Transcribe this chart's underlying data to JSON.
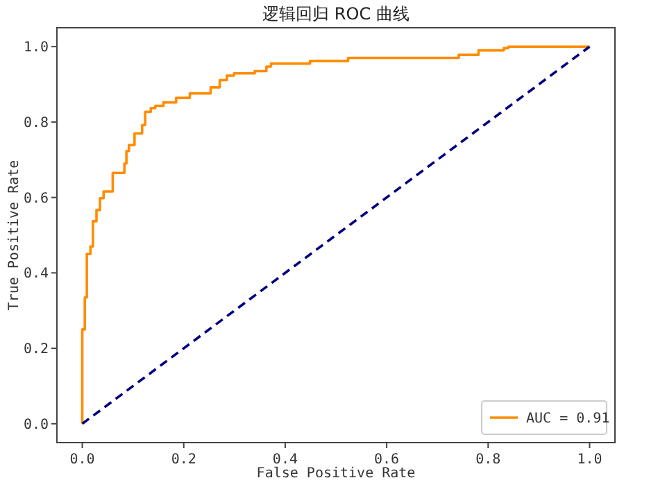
{
  "chart_data": {
    "type": "line",
    "title": "逻辑回归 ROC 曲线",
    "xlabel": "False Positive Rate",
    "ylabel": "True Positive Rate",
    "xlim": [
      -0.05,
      1.05
    ],
    "ylim": [
      -0.05,
      1.05
    ],
    "xticks": [
      {
        "value": 0,
        "label": "0.0"
      },
      0.2,
      0.4,
      0.6,
      0.8,
      {
        "value": 1,
        "label": "1.0"
      }
    ],
    "yticks": [
      {
        "value": 0,
        "label": "0.0"
      },
      0.2,
      0.4,
      0.6,
      0.8,
      {
        "value": 1,
        "label": "1.0"
      }
    ],
    "legend": "bottom right",
    "series": [
      {
        "name": "AUC = 0.91",
        "color": "#ff8c00",
        "line_style": "solid",
        "x": [
          0,
          0,
          0.005,
          0.005,
          0.009,
          0.009,
          0.016,
          0.016,
          0.021,
          0.021,
          0.028,
          0.028,
          0.035,
          0.035,
          0.042,
          0.042,
          0.06,
          0.06,
          0.083,
          0.083,
          0.087,
          0.087,
          0.092,
          0.092,
          0.103,
          0.103,
          0.118,
          0.118,
          0.124,
          0.124,
          0.135,
          0.135,
          0.144,
          0.144,
          0.16,
          0.16,
          0.185,
          0.185,
          0.212,
          0.212,
          0.253,
          0.253,
          0.271,
          0.271,
          0.285,
          0.285,
          0.299,
          0.299,
          0.34,
          0.34,
          0.363,
          0.363,
          0.372,
          0.372,
          0.449,
          0.449,
          0.524,
          0.524,
          0.742,
          0.742,
          0.781,
          0.781,
          0.831,
          0.831,
          0.84,
          0.84,
          1.0
        ],
        "values": [
          0,
          0.25,
          0.25,
          0.335,
          0.335,
          0.45,
          0.45,
          0.47,
          0.47,
          0.537,
          0.537,
          0.567,
          0.567,
          0.598,
          0.598,
          0.616,
          0.616,
          0.665,
          0.665,
          0.69,
          0.69,
          0.723,
          0.723,
          0.739,
          0.739,
          0.77,
          0.77,
          0.792,
          0.792,
          0.827,
          0.827,
          0.837,
          0.837,
          0.843,
          0.843,
          0.852,
          0.852,
          0.864,
          0.864,
          0.876,
          0.876,
          0.892,
          0.892,
          0.911,
          0.911,
          0.923,
          0.923,
          0.929,
          0.929,
          0.935,
          0.935,
          0.947,
          0.947,
          0.955,
          0.955,
          0.962,
          0.962,
          0.97,
          0.97,
          0.978,
          0.978,
          0.99,
          0.99,
          0.996,
          0.996,
          1.0,
          1.0
        ]
      },
      {
        "color": "#000080",
        "line_style": "dashed",
        "x": [
          0,
          1
        ],
        "values": [
          0,
          1
        ]
      }
    ]
  }
}
